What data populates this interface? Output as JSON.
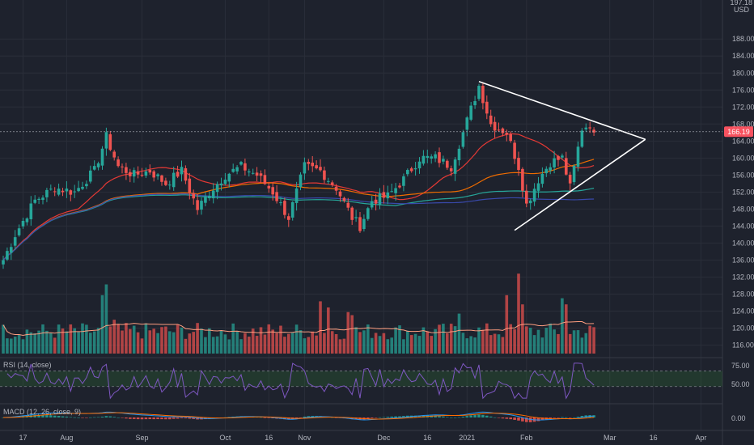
{
  "chart_data": {
    "type": "candlestick",
    "price_axis": {
      "currency": "USD",
      "top_label": "197.18",
      "ticks": [
        188,
        184,
        180,
        176,
        172,
        168,
        164,
        160,
        156,
        152,
        148,
        144,
        140,
        136,
        132,
        128,
        124,
        120,
        116
      ],
      "tick_labels": [
        "188.00",
        "184.00",
        "180.00",
        "176.00",
        "172.00",
        "168.00",
        "164.00",
        "160.00",
        "156.00",
        "152.00",
        "148.00",
        "144.00",
        "140.00",
        "136.00",
        "132.00",
        "128.00",
        "124.00",
        "120.00",
        "116.00"
      ],
      "range": [
        114,
        197.18
      ],
      "last_price": 166.19,
      "last_price_label": "166.19",
      "last_price_color": "#f7525f"
    },
    "date_axis": {
      "labels": [
        "17",
        "Aug",
        "Sep",
        "Oct",
        "16",
        "Nov",
        "Dec",
        "16",
        "2021",
        "Feb",
        "Mar",
        "16",
        "Apr"
      ]
    },
    "colors": {
      "up": "#26a69a",
      "down": "#ef5350",
      "ma20": "#e53935",
      "ma50": "#ef6c00",
      "ma100": "#26a69a",
      "ma200": "#3949ab",
      "volume_ma": "#ff9e80",
      "triangle": "#ffffff",
      "rsi_line": "#7e57c2",
      "rsi_band": "#2e7d32",
      "macd_line": "#2196f3",
      "signal_line": "#ff6d00"
    },
    "anchors": [
      {
        "i": 0,
        "p": 136
      },
      {
        "i": 3,
        "p": 142
      },
      {
        "i": 8,
        "p": 150
      },
      {
        "i": 13,
        "p": 153
      },
      {
        "i": 18,
        "p": 152
      },
      {
        "i": 23,
        "p": 157
      },
      {
        "i": 26,
        "p": 165
      },
      {
        "i": 29,
        "p": 158
      },
      {
        "i": 33,
        "p": 156
      },
      {
        "i": 37,
        "p": 157
      },
      {
        "i": 41,
        "p": 154
      },
      {
        "i": 45,
        "p": 157
      },
      {
        "i": 49,
        "p": 148
      },
      {
        "i": 52,
        "p": 152
      },
      {
        "i": 56,
        "p": 156
      },
      {
        "i": 60,
        "p": 158
      },
      {
        "i": 64,
        "p": 156
      },
      {
        "i": 68,
        "p": 152
      },
      {
        "i": 72,
        "p": 146
      },
      {
        "i": 76,
        "p": 158
      },
      {
        "i": 80,
        "p": 157
      },
      {
        "i": 84,
        "p": 153
      },
      {
        "i": 88,
        "p": 146
      },
      {
        "i": 90,
        "p": 144
      },
      {
        "i": 93,
        "p": 150
      },
      {
        "i": 97,
        "p": 151
      },
      {
        "i": 101,
        "p": 155
      },
      {
        "i": 105,
        "p": 160
      },
      {
        "i": 109,
        "p": 160
      },
      {
        "i": 113,
        "p": 158
      },
      {
        "i": 116,
        "p": 166
      },
      {
        "i": 120,
        "p": 177
      },
      {
        "i": 123,
        "p": 168
      },
      {
        "i": 127,
        "p": 166
      },
      {
        "i": 130,
        "p": 158
      },
      {
        "i": 132,
        "p": 149
      },
      {
        "i": 135,
        "p": 155
      },
      {
        "i": 138,
        "p": 159
      },
      {
        "i": 141,
        "p": 160
      },
      {
        "i": 143,
        "p": 153
      },
      {
        "i": 146,
        "p": 167
      },
      {
        "i": 148,
        "p": 168
      },
      {
        "i": 149,
        "p": 166
      }
    ],
    "volume_spikes": [
      {
        "i": 25,
        "v": 1.9
      },
      {
        "i": 26,
        "v": 2.25
      },
      {
        "i": 28,
        "v": 1.1
      },
      {
        "i": 80,
        "v": 1.7
      },
      {
        "i": 82,
        "v": 1.5
      },
      {
        "i": 87,
        "v": 1.35
      },
      {
        "i": 88,
        "v": 1.25
      },
      {
        "i": 115,
        "v": 1.3
      },
      {
        "i": 127,
        "v": 1.9
      },
      {
        "i": 130,
        "v": 2.6
      },
      {
        "i": 131,
        "v": 1.6
      },
      {
        "i": 141,
        "v": 1.8
      },
      {
        "i": 142,
        "v": 1.6
      }
    ],
    "triangle": {
      "upper_start": {
        "i": 120,
        "p": 178
      },
      "apex": {
        "i": 162,
        "p": 164.4
      },
      "lower_start": {
        "i": 129,
        "p": 143
      }
    },
    "rsi": {
      "label": "RSI (14, close)",
      "ticks": [
        "75.00",
        "50.00"
      ],
      "levels": [
        70,
        50
      ],
      "range": [
        30,
        85
      ]
    },
    "macd": {
      "label": "MACD (12, 26, close, 9)",
      "ticks": [
        "0.00"
      ]
    }
  }
}
